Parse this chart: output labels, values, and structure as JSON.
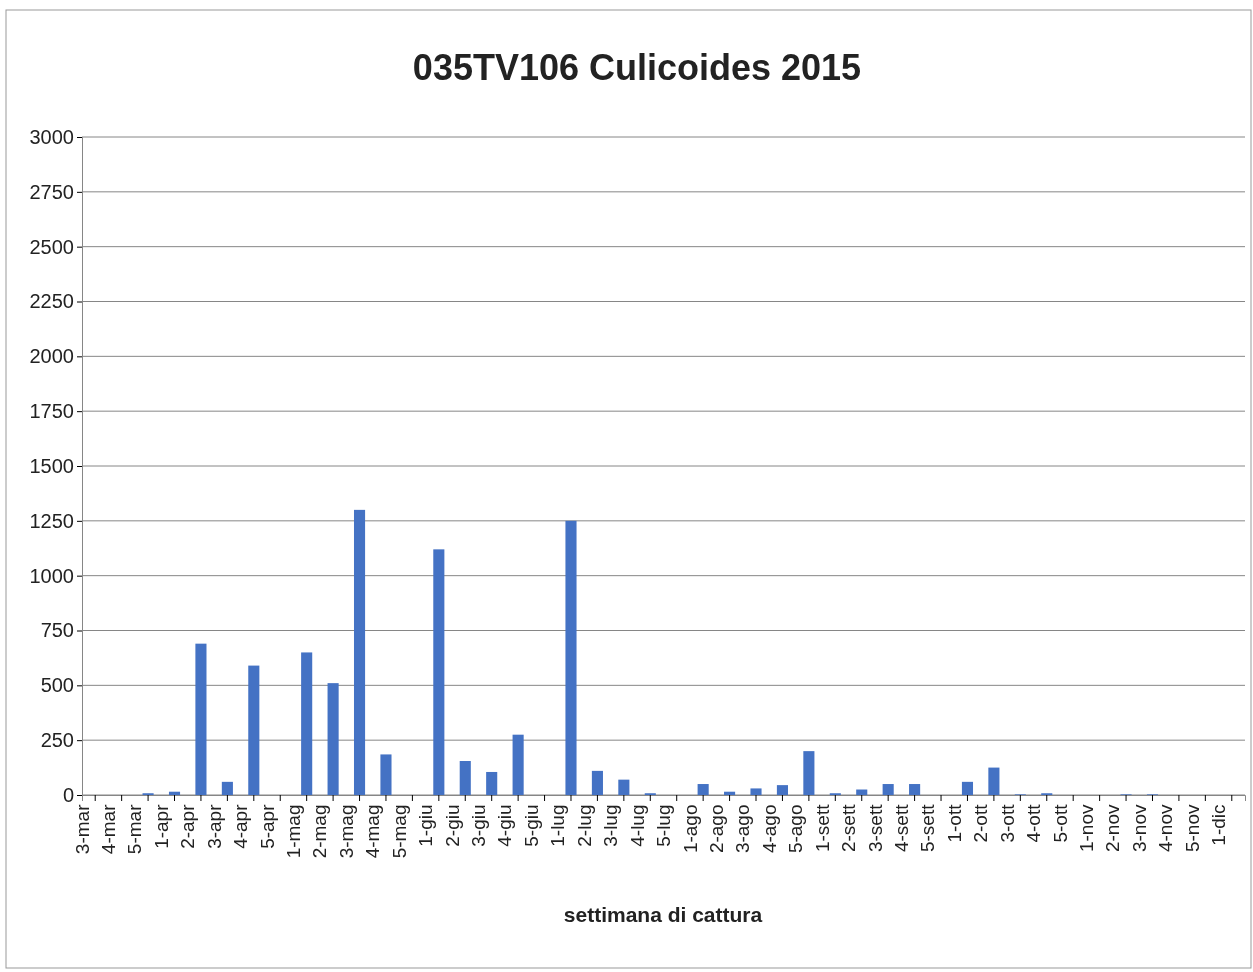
{
  "chart_data": {
    "type": "bar",
    "title": "035TV106 Culicoides 2015",
    "xlabel": "settimana di cattura",
    "categories": [
      "3-mar",
      "4-mar",
      "5-mar",
      "1-apr",
      "2-apr",
      "3-apr",
      "4-apr",
      "5-apr",
      "1-mag",
      "2-mag",
      "3-mag",
      "4-mag",
      "5-mag",
      "1-giu",
      "2-giu",
      "3-giu",
      "4-giu",
      "5-giu",
      "1-lug",
      "2-lug",
      "3-lug",
      "4-lug",
      "5-lug",
      "1-ago",
      "2-ago",
      "3-ago",
      "4-ago",
      "5-ago",
      "1-sett",
      "2-sett",
      "3-sett",
      "4-sett",
      "5-sett",
      "1-ott",
      "2-ott",
      "3-ott",
      "4-ott",
      "5-ott",
      "1-nov",
      "2-nov",
      "3-nov",
      "4-nov",
      "5-nov",
      "1-dic"
    ],
    "values": [
      0,
      0,
      8,
      15,
      690,
      60,
      590,
      0,
      650,
      510,
      1300,
      185,
      0,
      1120,
      155,
      105,
      275,
      0,
      1250,
      110,
      70,
      8,
      0,
      50,
      15,
      30,
      45,
      200,
      8,
      25,
      50,
      50,
      0,
      60,
      125,
      3,
      8,
      0,
      0,
      3,
      3,
      0,
      0,
      0
    ],
    "color": "#4472c4",
    "ylim": [
      0,
      3000
    ],
    "yticks": [
      0,
      250,
      500,
      750,
      1000,
      1250,
      1500,
      1750,
      2000,
      2250,
      2500,
      2750,
      3000
    ],
    "grid": "y"
  }
}
